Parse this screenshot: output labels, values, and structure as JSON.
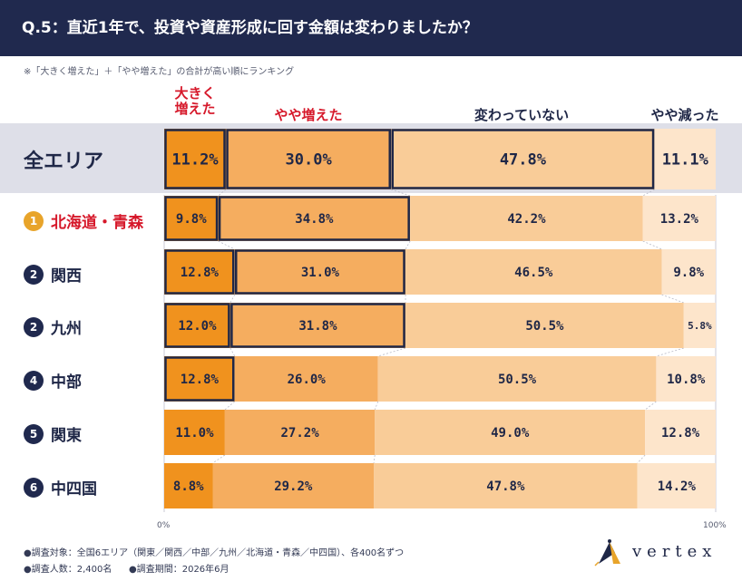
{
  "header": {
    "title": "Q.5：直近1年で、投資や資産形成に回す金額は変わりましたか？"
  },
  "note": "※「大きく増えた」＋「やや増えた」の合計が高い順にランキング",
  "chart_data": {
    "type": "bar",
    "stacked": true,
    "orientation": "horizontal",
    "xlim": [
      0,
      100
    ],
    "x_tick_labels": [
      "0%",
      "100%"
    ],
    "categories": [
      "全エリア",
      "北海道・青森",
      "関西",
      "九州",
      "中部",
      "関東",
      "中四国"
    ],
    "ranks": [
      "",
      "1",
      "2",
      "2",
      "4",
      "5",
      "6"
    ],
    "series": [
      {
        "name": "大きく増えた",
        "color": "#f0921e",
        "values": [
          11.2,
          9.8,
          12.8,
          12.0,
          12.8,
          11.0,
          8.8
        ]
      },
      {
        "name": "やや増えた",
        "color": "#f5ad5f",
        "values": [
          30.0,
          34.8,
          31.0,
          31.8,
          26.0,
          27.2,
          29.2
        ]
      },
      {
        "name": "変わっていない",
        "color": "#f9cc98",
        "values": [
          47.8,
          42.2,
          46.5,
          50.5,
          50.5,
          49.0,
          47.8
        ]
      },
      {
        "name": "やや減った",
        "color": "#fde5cb",
        "values": [
          11.1,
          13.2,
          9.8,
          5.8,
          10.8,
          12.8,
          14.2
        ]
      }
    ],
    "boxed_segments": [
      [
        0,
        1,
        2
      ],
      [
        0,
        1
      ],
      [
        0,
        1
      ],
      [
        0,
        1
      ],
      [
        0
      ],
      [],
      []
    ],
    "value_labels": [
      [
        "11.2%",
        "30.0%",
        "47.8%",
        "11.1%"
      ],
      [
        "9.8%",
        "34.8%",
        "42.2%",
        "13.2%"
      ],
      [
        "12.8%",
        "31.0%",
        "46.5%",
        "9.8%"
      ],
      [
        "12.0%",
        "31.8%",
        "50.5%",
        "5.8%"
      ],
      [
        "12.8%",
        "26.0%",
        "50.5%",
        "10.8%"
      ],
      [
        "11.0%",
        "27.2%",
        "49.0%",
        "12.8%"
      ],
      [
        "8.8%",
        "29.2%",
        "47.8%",
        "14.2%"
      ]
    ]
  },
  "col_labels": {
    "c0": "大きく\n増えた",
    "c1": "やや増えた",
    "c2": "変わっていない",
    "c3": "やや減った"
  },
  "footer": {
    "line1": "●調査対象：全国6エリア（関東／関西／中部／九州／北海道・青森／中四国）、各400名ずつ",
    "line2a": "●調査人数：2,400名",
    "line2b": "●調査期間：2026年6月"
  },
  "brand": {
    "name": "vertex"
  }
}
